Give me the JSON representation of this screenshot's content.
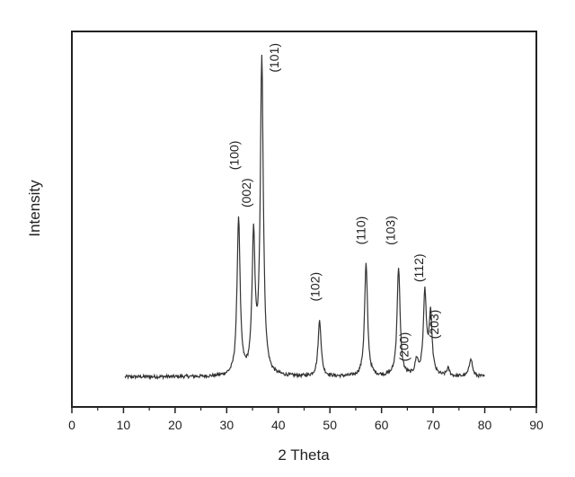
{
  "chart_data": {
    "type": "line",
    "xlabel": "2 Theta",
    "ylabel": "Intensity",
    "xlim": [
      0,
      90
    ],
    "ylim": [
      0,
      100
    ],
    "x_ticks": [
      0,
      10,
      20,
      30,
      40,
      50,
      60,
      70,
      80,
      90
    ],
    "y_ticks_shown": false,
    "grid": false,
    "legend": "none",
    "baseline": 8,
    "peaks": [
      {
        "x": 32.3,
        "y": 50
      },
      {
        "x": 35.2,
        "y": 44
      },
      {
        "x": 36.8,
        "y": 92
      },
      {
        "x": 48.0,
        "y": 23
      },
      {
        "x": 57.0,
        "y": 38
      },
      {
        "x": 63.3,
        "y": 37
      },
      {
        "x": 66.8,
        "y": 12
      },
      {
        "x": 68.4,
        "y": 30
      },
      {
        "x": 69.5,
        "y": 24
      },
      {
        "x": 72.9,
        "y": 10
      },
      {
        "x": 77.3,
        "y": 13
      }
    ],
    "annotations": [
      {
        "text": "(100)",
        "x": 32.3,
        "y": 67
      },
      {
        "text": "(002)",
        "x": 34.6,
        "y": 57
      },
      {
        "text": "(101)",
        "x": 40.0,
        "y": 93
      },
      {
        "text": "(102)",
        "x": 48.0,
        "y": 32
      },
      {
        "text": "(110)",
        "x": 56.8,
        "y": 47
      },
      {
        "text": "(103)",
        "x": 62.6,
        "y": 47
      },
      {
        "text": "(200)",
        "x": 65.2,
        "y": 16
      },
      {
        "text": "(112)",
        "x": 68.1,
        "y": 37
      },
      {
        "text": "(203)",
        "x": 71.0,
        "y": 22
      }
    ]
  }
}
